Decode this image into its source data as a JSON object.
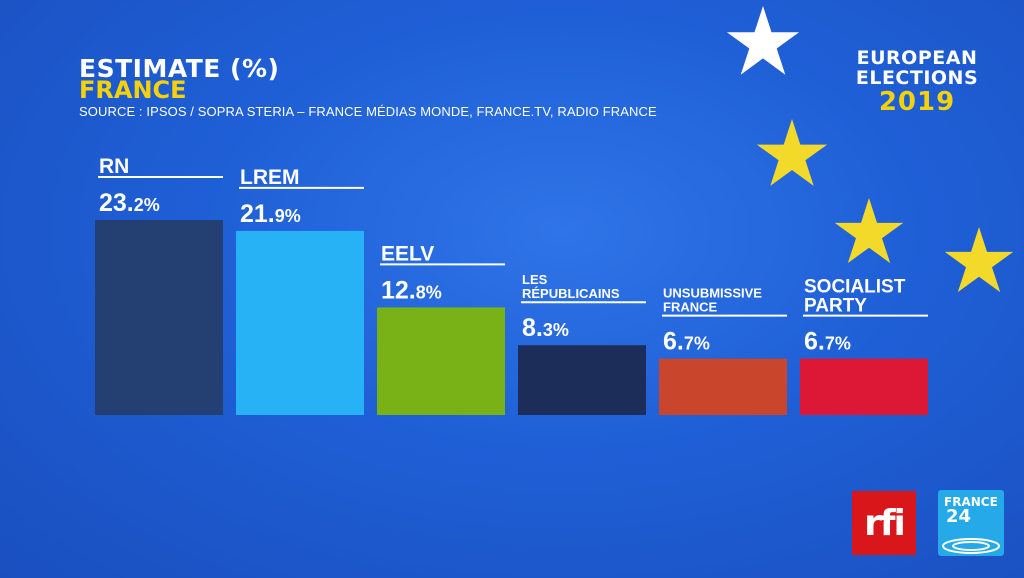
{
  "header": {
    "title": "ESTIMATE (%)",
    "subtitle": "FRANCE",
    "source": "SOURCE : IPSOS / SOPRA STERIA – FRANCE MÉDIAS MONDE, FRANCE.TV, RADIO FRANCE"
  },
  "badge": {
    "line1": "EUROPEAN",
    "line2": "ELECTIONS",
    "year": "2019"
  },
  "logos": {
    "rfi": "rfi",
    "france24_top": "FRANCE",
    "france24_num": "24"
  },
  "colors": {
    "background": "#1f5fd6",
    "accent_yellow": "#f5d10c",
    "stars": "#f2d92a"
  },
  "chart_data": {
    "type": "bar",
    "unit": "%",
    "ylim": [
      0,
      23.2
    ],
    "categories": [
      {
        "label": [
          "RN"
        ],
        "value_int": "23.",
        "value_dec": "2",
        "value": 23.2,
        "color": "#243f72"
      },
      {
        "label": [
          "LREM"
        ],
        "value_int": "21.",
        "value_dec": "9",
        "value": 21.9,
        "color": "#27b2f5"
      },
      {
        "label": [
          "EELV"
        ],
        "value_int": "12.",
        "value_dec": "8",
        "value": 12.8,
        "color": "#79b217"
      },
      {
        "label": [
          "LES",
          "RÉPUBLICAINS"
        ],
        "value_int": "8.",
        "value_dec": "3",
        "value": 8.3,
        "color": "#1c2d5a"
      },
      {
        "label": [
          "UNSUBMISSIVE",
          "FRANCE"
        ],
        "value_int": "6.",
        "value_dec": "7",
        "value": 6.7,
        "color": "#c9452c"
      },
      {
        "label": [
          "SOCIALIST",
          "PARTY"
        ],
        "value_int": "6.",
        "value_dec": "7",
        "value": 6.7,
        "color": "#dc1836"
      }
    ]
  }
}
